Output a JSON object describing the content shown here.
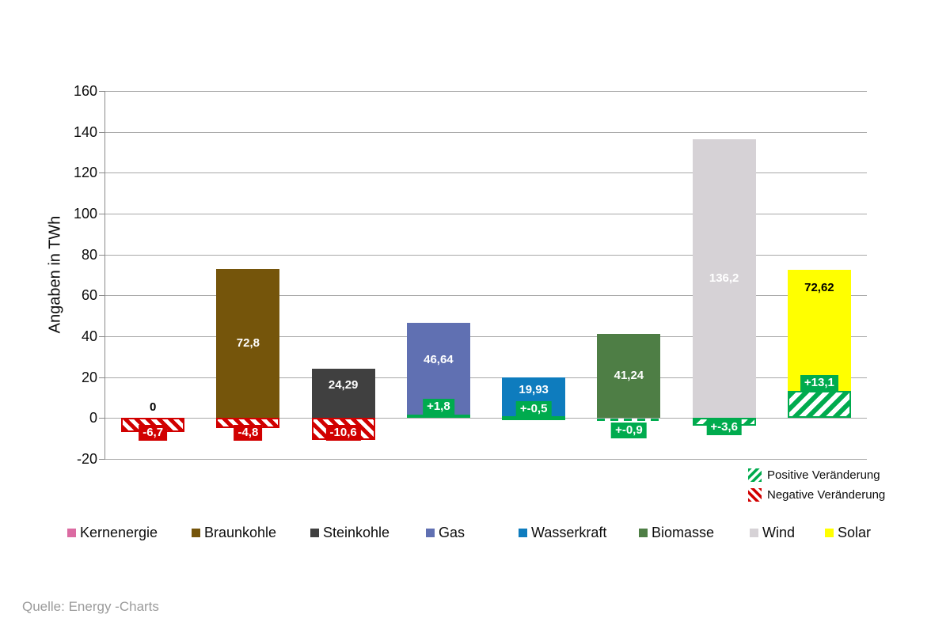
{
  "chart_data": {
    "type": "bar",
    "title": "",
    "ylabel": "Angaben in TWh",
    "ylim": [
      -20,
      160
    ],
    "ytick_step": 20,
    "grid": true,
    "unit": "TWh",
    "colors": {
      "positive": "#00ab4e",
      "negative": "#d10000",
      "grid": "#a8a8a8"
    },
    "categories": [
      {
        "name": "Kernenergie",
        "color": "#db6ba2",
        "value": 0,
        "value_label": "0",
        "value_label_color": "#000000",
        "change": {
          "value": -6.7,
          "label": "-6,7",
          "style": "hatch-red"
        }
      },
      {
        "name": "Braunkohle",
        "color": "#75550b",
        "value": 72.8,
        "value_label": "72,8",
        "value_label_color": "#ffffff",
        "change": {
          "value": -4.8,
          "label": "-4,8",
          "style": "hatch-red"
        }
      },
      {
        "name": "Steinkohle",
        "color": "#404040",
        "value": 24.29,
        "value_label": "24,29",
        "value_label_color": "#ffffff",
        "label_shift": -10,
        "change": {
          "value": -10.6,
          "label": "-10,6",
          "style": "hatch-red"
        }
      },
      {
        "name": "Gas",
        "color": "#6070b2",
        "value": 46.64,
        "value_label": "46,64",
        "value_label_color": "#ffffff",
        "label_shift": -13,
        "change": {
          "value": 1.8,
          "label": "+1,8",
          "style": "hatch-green-above"
        }
      },
      {
        "name": "Wasserkraft",
        "color": "#0e7cbe",
        "value": 19.93,
        "value_label": "19,93",
        "value_label_color": "#ffffff",
        "label_shift": -10,
        "change": {
          "value": -0.5,
          "label": "+-0,5",
          "style": "strip-green-zero"
        }
      },
      {
        "name": "Biomasse",
        "color": "#4e7e45",
        "value": 41.24,
        "value_label": "41,24",
        "value_label_color": "#ffffff",
        "change": {
          "value": -0.9,
          "label": "+-0,9",
          "style": "dash-green-below"
        }
      },
      {
        "name": "Wind",
        "color": "#d6d2d6",
        "value": 136.2,
        "value_label": "136,2",
        "value_label_color": "#ffffff",
        "change": {
          "value": -3.6,
          "label": "+-3,6",
          "style": "hatch-green-below"
        }
      },
      {
        "name": "Solar",
        "color": "#ffff00",
        "value": 72.62,
        "value_label": "72,62",
        "value_label_color": "#000000",
        "label_at": "top",
        "change": {
          "value": 13.1,
          "label": "+13,1",
          "style": "hatch-green-above"
        }
      }
    ],
    "change_legend": [
      {
        "label": "Positive Veränderung",
        "style": "hatch-green"
      },
      {
        "label": "Negative Veränderung",
        "style": "hatch-red"
      }
    ],
    "legend_position": "bottom",
    "source": "Quelle: Energy -Charts"
  }
}
